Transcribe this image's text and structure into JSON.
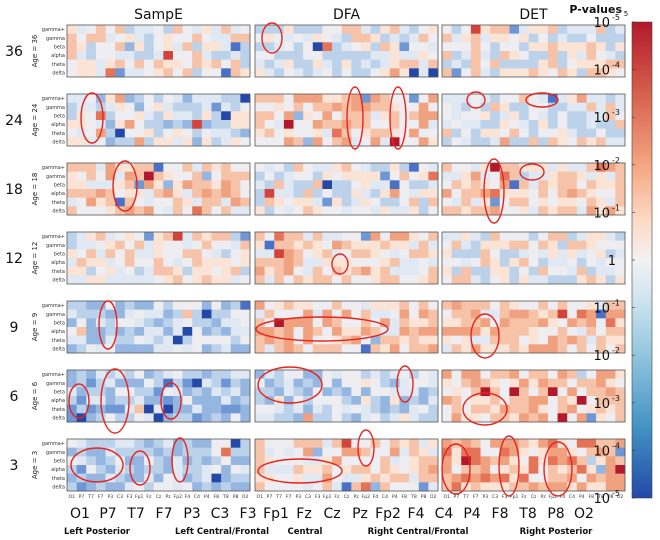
{
  "chart_data": {
    "type": "heatmap",
    "colorbar": {
      "title": "P-values",
      "title_sub": "5",
      "ticks": [
        "10",
        "10",
        "10",
        "10",
        "10",
        "1",
        "10",
        "10",
        "10",
        "10",
        "10"
      ],
      "tick_exps": [
        "-5",
        "-4",
        "-3",
        "-2",
        "-1",
        "",
        "-1",
        "-2",
        "-3",
        "-4",
        "-5"
      ],
      "colors": [
        "#b2182b",
        "#d6604d",
        "#f4a582",
        "#fddbc7",
        "#f7f7f7",
        "#d1e5f0",
        "#92c5de",
        "#4393c3",
        "#2166ac"
      ]
    },
    "columns": [
      "SampE",
      "DFA",
      "DET"
    ],
    "row_labels": [
      "36",
      "24",
      "18",
      "12",
      "9",
      "6",
      "3"
    ],
    "age_labels": [
      "Age = 36",
      "Age = 24",
      "Age = 18",
      "Age = 12",
      "Age = 9",
      "Age = 6",
      "Age = 3"
    ],
    "bands": [
      "gamma+",
      "gamma",
      "beta",
      "alpha",
      "theta",
      "delta"
    ],
    "channel_ticks": [
      "O1",
      "P7",
      "T7",
      "F7",
      "P3",
      "C3",
      "F3",
      "Fp1",
      "Fz",
      "Cz",
      "Pz",
      "Fp2",
      "F4",
      "C4",
      "P4",
      "F8",
      "T8",
      "P8",
      "O2"
    ],
    "channels_big": [
      "O1",
      "P7",
      "T7",
      "F7",
      "P3",
      "C3",
      "F3",
      "Fp1",
      "Fz",
      "Cz",
      "Pz",
      "Fp2",
      "F4",
      "C4",
      "P4",
      "F8",
      "T8",
      "P8",
      "O2"
    ],
    "regions": [
      "Left Posterior",
      "Left Central/Frontal",
      "Central",
      "Right Central/Frontal",
      "Right Posterior"
    ],
    "seed": 7
  }
}
